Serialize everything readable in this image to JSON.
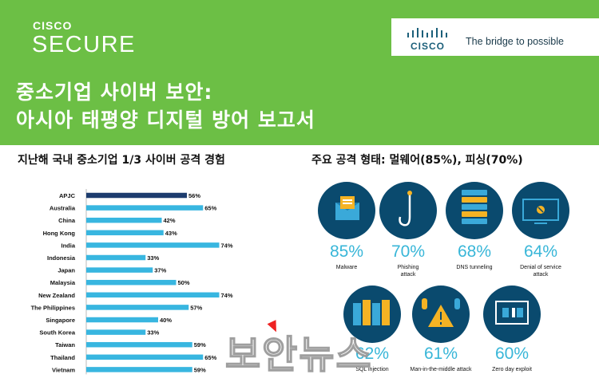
{
  "header": {
    "brand_top": "CISCO",
    "brand_sub": "SECURE",
    "logo_word": "CISCO",
    "tagline": "The bridge to possible",
    "title_line1": "중소기업 사이버 보안:",
    "title_line2": "아시아 태평양 디지털 방어 보고서",
    "bg_color": "#6cbf45"
  },
  "left_section": {
    "title": "지난해 국내 중소기업 1/3 사이버 공격 경험"
  },
  "right_section": {
    "title": "주요 공격 형태: 멀웨어(85%), 피싱(70%)",
    "attacks": [
      {
        "pct": "85%",
        "label": "Malware",
        "icon": "envelope-icon"
      },
      {
        "pct": "70%",
        "label": "Phishing attack",
        "icon": "fishhook-icon"
      },
      {
        "pct": "68%",
        "label": "DNS tunneling",
        "icon": "server-icon"
      },
      {
        "pct": "64%",
        "label": "Denial of service attack",
        "icon": "monitor-icon"
      },
      {
        "pct": "62%",
        "label": "SQL injection",
        "icon": "database-icon"
      },
      {
        "pct": "61%",
        "label": "Man-in-the-middle attack",
        "icon": "warning-icon"
      },
      {
        "pct": "60%",
        "label": "Zero day exploit",
        "icon": "code-screen-icon"
      }
    ]
  },
  "watermark": "보안뉴스",
  "chart_data": {
    "type": "bar",
    "orientation": "horizontal",
    "categories": [
      "APJC",
      "Australia",
      "China",
      "Hong Kong",
      "India",
      "Indonesia",
      "Japan",
      "Malaysia",
      "New Zealand",
      "The Philippines",
      "Singapore",
      "South Korea",
      "Taiwan",
      "Thailand",
      "Vietnam"
    ],
    "values": [
      56,
      65,
      42,
      43,
      74,
      33,
      37,
      50,
      74,
      57,
      40,
      33,
      59,
      65,
      59
    ],
    "value_labels": [
      "56%",
      "65%",
      "42%",
      "43%",
      "74%",
      "33%",
      "37%",
      "50%",
      "74%",
      "57%",
      "40%",
      "33%",
      "59%",
      "65%",
      "59%"
    ],
    "colors": {
      "highlight": "#1d3c6e",
      "default": "#38b6e0"
    },
    "highlight_index": 0,
    "xlim": [
      0,
      100
    ]
  }
}
